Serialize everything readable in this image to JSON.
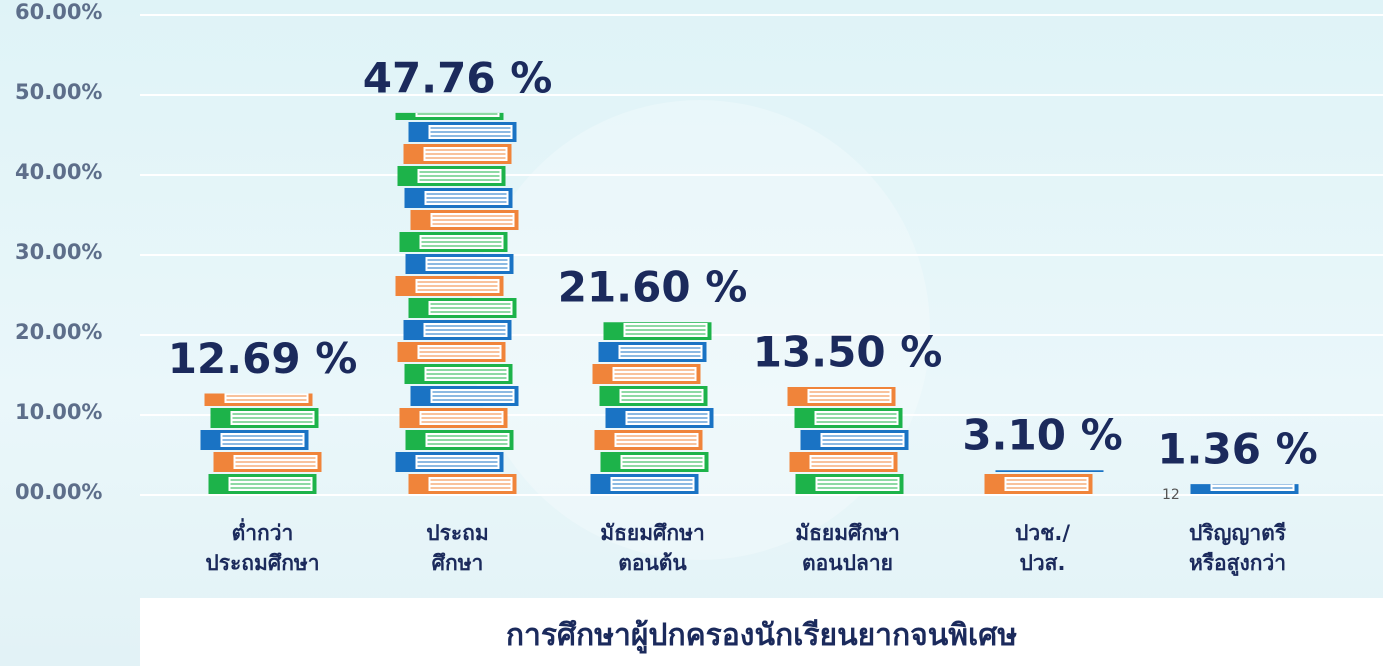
{
  "chart_data": {
    "type": "bar",
    "title": "การศึกษาผู้ปกครองนักเรียนยากจนพิเศษ",
    "categories": [
      "ต่ำกว่า\nประถมศึกษา",
      "ประถม\nศึกษา",
      "มัธยมศึกษา\nตอนต้น",
      "มัธยมศึกษา\nตอนปลาย",
      "ปวช./\nปวส.",
      "ปริญญาตรี\nหรือสูงกว่า"
    ],
    "values": [
      12.69,
      47.76,
      21.6,
      13.5,
      3.1,
      1.36
    ],
    "value_labels": [
      "12.69 %",
      "47.76 %",
      "21.60 %",
      "13.50 %",
      "3.10 %",
      "1.36 %"
    ],
    "ylim": [
      0,
      60
    ],
    "yticks": [
      {
        "value": 0,
        "label": "00.00%"
      },
      {
        "value": 10,
        "label": "10.00%"
      },
      {
        "value": 20,
        "label": "20.00%"
      },
      {
        "value": 30,
        "label": "30.00%"
      },
      {
        "value": 40,
        "label": "40.00%"
      },
      {
        "value": 50,
        "label": "50.00%"
      },
      {
        "value": 60,
        "label": "60.00%"
      }
    ],
    "grid": true,
    "colors": [
      "#1db34a",
      "#f0843a",
      "#1a73c4"
    ],
    "page_number": "12"
  }
}
